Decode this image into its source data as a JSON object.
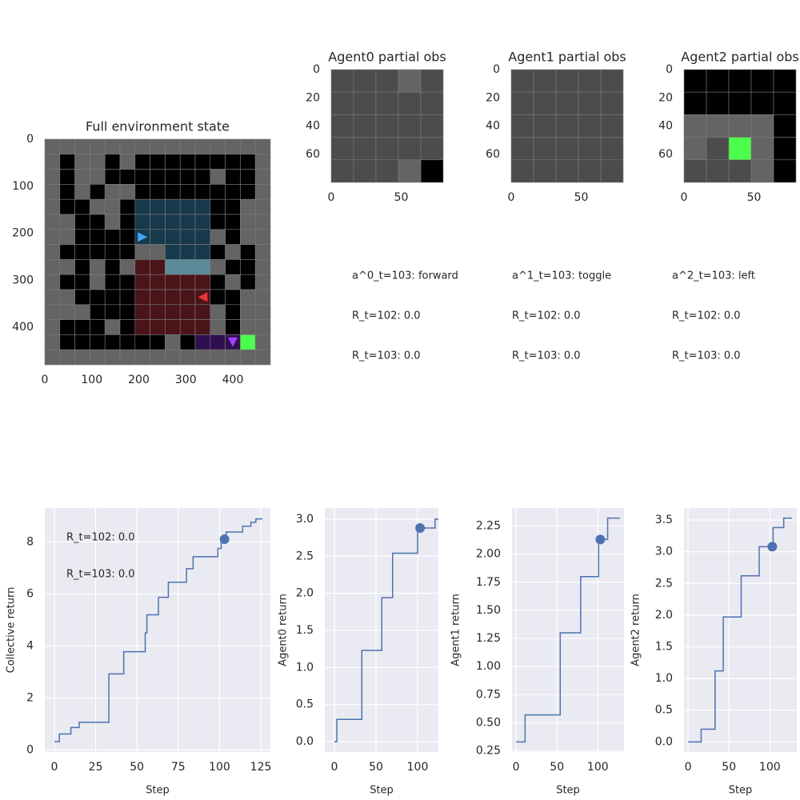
{
  "chart_data": [
    {
      "type": "image",
      "title": "Full environment state",
      "xlim": [
        0,
        480
      ],
      "ylim": [
        480,
        0
      ],
      "xticks": [
        0,
        100,
        200,
        300,
        400
      ],
      "yticks": [
        0,
        100,
        200,
        300,
        400
      ],
      "grid": false,
      "palette": [
        "#646464",
        "#000000",
        "#17394c",
        "#5b8b9b",
        "#4b1418",
        "#2f0f4f",
        "#4cff4c",
        "#4c4c4c"
      ],
      "cells": [
        [
          0,
          0,
          0,
          0,
          0,
          0,
          0,
          0,
          0,
          0,
          0,
          0,
          0,
          0,
          0
        ],
        [
          0,
          1,
          0,
          0,
          1,
          0,
          1,
          1,
          1,
          1,
          1,
          1,
          1,
          1,
          0
        ],
        [
          0,
          1,
          0,
          0,
          1,
          1,
          1,
          1,
          1,
          1,
          1,
          0,
          1,
          1,
          0
        ],
        [
          0,
          1,
          0,
          1,
          0,
          0,
          1,
          1,
          1,
          1,
          1,
          1,
          1,
          1,
          0
        ],
        [
          0,
          1,
          1,
          0,
          0,
          1,
          2,
          2,
          2,
          2,
          2,
          1,
          1,
          0,
          0
        ],
        [
          0,
          0,
          1,
          1,
          0,
          1,
          2,
          2,
          2,
          2,
          2,
          1,
          1,
          0,
          0
        ],
        [
          0,
          0,
          1,
          1,
          1,
          1,
          2,
          2,
          2,
          2,
          2,
          0,
          1,
          0,
          0
        ],
        [
          0,
          1,
          1,
          1,
          1,
          1,
          0,
          0,
          2,
          2,
          2,
          1,
          0,
          1,
          0
        ],
        [
          0,
          0,
          1,
          0,
          1,
          0,
          4,
          4,
          3,
          3,
          3,
          0,
          1,
          1,
          0
        ],
        [
          0,
          1,
          1,
          0,
          1,
          1,
          4,
          4,
          4,
          4,
          4,
          1,
          0,
          1,
          0
        ],
        [
          0,
          0,
          1,
          1,
          1,
          1,
          4,
          4,
          4,
          4,
          4,
          1,
          1,
          0,
          0
        ],
        [
          0,
          0,
          0,
          1,
          1,
          1,
          4,
          4,
          4,
          4,
          4,
          0,
          1,
          0,
          0
        ],
        [
          0,
          1,
          1,
          1,
          0,
          1,
          4,
          4,
          4,
          4,
          4,
          0,
          1,
          0,
          0
        ],
        [
          0,
          1,
          1,
          1,
          1,
          1,
          1,
          1,
          0,
          1,
          5,
          5,
          5,
          6,
          0
        ],
        [
          0,
          0,
          0,
          0,
          0,
          0,
          0,
          0,
          0,
          0,
          0,
          0,
          0,
          0,
          0
        ]
      ],
      "markers": [
        {
          "x": 208,
          "y": 208,
          "direction": "right",
          "color": "#3fa9f5"
        },
        {
          "x": 336,
          "y": 336,
          "direction": "left",
          "color": "#e8353a"
        },
        {
          "x": 400,
          "y": 432,
          "direction": "down",
          "color": "#a040ff"
        }
      ]
    },
    {
      "type": "image",
      "title": "Agent0 partial obs",
      "xlim": [
        0,
        80
      ],
      "ylim": [
        80,
        0
      ],
      "xticks": [
        0,
        50
      ],
      "yticks": [
        0,
        20,
        40,
        60
      ],
      "grid": false,
      "palette": [
        "#646464",
        "#000000",
        "#17394c",
        "#5b8b9b",
        "#4b1418",
        "#2f0f4f",
        "#4cff4c",
        "#4c4c4c"
      ],
      "cells": [
        [
          7,
          7,
          7,
          0,
          7
        ],
        [
          7,
          7,
          7,
          7,
          7
        ],
        [
          7,
          7,
          7,
          7,
          7
        ],
        [
          7,
          7,
          7,
          7,
          7
        ],
        [
          7,
          7,
          7,
          0,
          1
        ]
      ]
    },
    {
      "type": "image",
      "title": "Agent1 partial obs",
      "xlim": [
        0,
        80
      ],
      "ylim": [
        80,
        0
      ],
      "xticks": [
        0,
        50
      ],
      "yticks": [
        0,
        20,
        40,
        60
      ],
      "grid": false,
      "palette": [
        "#646464",
        "#000000",
        "#17394c",
        "#5b8b9b",
        "#4b1418",
        "#2f0f4f",
        "#4cff4c",
        "#4c4c4c"
      ],
      "cells": [
        [
          7,
          7,
          7,
          7,
          7
        ],
        [
          7,
          7,
          7,
          7,
          7
        ],
        [
          7,
          7,
          7,
          7,
          7
        ],
        [
          7,
          7,
          7,
          7,
          7
        ],
        [
          7,
          7,
          7,
          7,
          7
        ]
      ]
    },
    {
      "type": "image",
      "title": "Agent2 partial obs",
      "xlim": [
        0,
        80
      ],
      "ylim": [
        80,
        0
      ],
      "xticks": [
        0,
        50
      ],
      "yticks": [
        0,
        20,
        40,
        60
      ],
      "grid": false,
      "palette": [
        "#646464",
        "#000000",
        "#17394c",
        "#5b8b9b",
        "#4b1418",
        "#2f0f4f",
        "#4cff4c",
        "#4c4c4c"
      ],
      "cells": [
        [
          1,
          1,
          1,
          1,
          1
        ],
        [
          1,
          1,
          1,
          1,
          1
        ],
        [
          0,
          0,
          0,
          0,
          1
        ],
        [
          0,
          7,
          6,
          0,
          1
        ],
        [
          7,
          7,
          7,
          0,
          1
        ]
      ]
    },
    {
      "type": "line",
      "drawstyle": "steps-post",
      "xlabel": "Step",
      "ylabel": "Collective return",
      "xlim": [
        -5.8,
        130.8
      ],
      "ylim": [
        -0.07,
        9.3
      ],
      "xticks": [
        0,
        25,
        50,
        75,
        100,
        125
      ],
      "yticks": [
        0,
        2,
        4,
        6,
        8
      ],
      "grid": true,
      "annotations": [
        "R_t=102: 0.0",
        "R_t=103: 0.0"
      ],
      "series": [
        {
          "color": "#4c72b0",
          "x": [
            0,
            3,
            10,
            15,
            33,
            42,
            55,
            56,
            63,
            69,
            80,
            84,
            99,
            101,
            104,
            114,
            119,
            122,
            126
          ],
          "values": [
            0.33,
            0.62,
            0.87,
            1.07,
            2.93,
            3.78,
            4.5,
            5.2,
            5.87,
            6.45,
            6.97,
            7.43,
            7.75,
            8.1,
            8.38,
            8.6,
            8.75,
            8.88,
            8.88
          ]
        }
      ],
      "highlight": {
        "x": 103,
        "y": 8.1
      }
    },
    {
      "type": "line",
      "drawstyle": "steps-post",
      "xlabel": "Step",
      "ylabel": "Agent0 return",
      "xlim": [
        -11.5,
        125
      ],
      "ylim": [
        -0.14,
        3.15
      ],
      "xticks": [
        0,
        50,
        100
      ],
      "yticks": [
        {
          "value": 0,
          "label": "0.0"
        },
        0.5,
        {
          "value": 1,
          "label": "1.0"
        },
        1.5,
        {
          "value": 2,
          "label": "2.0"
        },
        2.5,
        {
          "value": 3,
          "label": "3.0"
        }
      ],
      "grid": true,
      "series": [
        {
          "color": "#4c72b0",
          "x": [
            0,
            3,
            33,
            57,
            70,
            100,
            121,
            125
          ],
          "values": [
            0,
            0.3,
            1.23,
            1.94,
            2.54,
            2.88,
            3.0,
            3.0
          ]
        }
      ],
      "highlight": {
        "x": 103,
        "y": 2.88
      }
    },
    {
      "type": "line",
      "drawstyle": "steps-post",
      "xlabel": "Step",
      "ylabel": "Agent1 return",
      "xlim": [
        -5,
        132
      ],
      "ylim": [
        0.24,
        2.41
      ],
      "xticks": [
        0,
        50,
        100
      ],
      "yticks": [
        0.25,
        {
          "value": 0.5,
          "label": "0.50"
        },
        0.75,
        {
          "value": 1,
          "label": "1.00"
        },
        1.25,
        {
          "value": 1.5,
          "label": "1.50"
        },
        1.75,
        {
          "value": 2,
          "label": "2.00"
        },
        2.25
      ],
      "grid": true,
      "series": [
        {
          "color": "#4c72b0",
          "x": [
            0,
            11,
            54,
            79,
            101,
            112,
            127
          ],
          "values": [
            0.33,
            0.57,
            1.3,
            1.8,
            2.13,
            2.32,
            2.32
          ]
        }
      ],
      "highlight": {
        "x": 103,
        "y": 2.13
      }
    },
    {
      "type": "line",
      "drawstyle": "steps-post",
      "xlabel": "Step",
      "ylabel": "Agent2 return",
      "xlim": [
        -5,
        133
      ],
      "ylim": [
        -0.16,
        3.69
      ],
      "xticks": [
        0,
        50,
        100
      ],
      "yticks": [
        {
          "value": 0,
          "label": "0.0"
        },
        0.5,
        {
          "value": 1,
          "label": "1.0"
        },
        1.5,
        {
          "value": 2,
          "label": "2.0"
        },
        2.5,
        {
          "value": 3,
          "label": "3.0"
        },
        3.5
      ],
      "grid": true,
      "series": [
        {
          "color": "#4c72b0",
          "x": [
            0,
            16,
            33,
            43,
            65,
            87,
            104,
            117,
            127
          ],
          "values": [
            0,
            0.2,
            1.12,
            1.97,
            2.62,
            3.08,
            3.38,
            3.53,
            3.53
          ]
        }
      ],
      "highlight": {
        "x": 103,
        "y": 3.08
      }
    }
  ],
  "annotations": [
    [
      "a^0_t=103: forward",
      "R_t=102: 0.0",
      "R_t=103: 0.0"
    ],
    [
      "a^1_t=103: toggle",
      "R_t=102: 0.0",
      "R_t=103: 0.0"
    ],
    [
      "a^2_t=103: left",
      "R_t=102: 0.0",
      "R_t=103: 0.0"
    ]
  ]
}
